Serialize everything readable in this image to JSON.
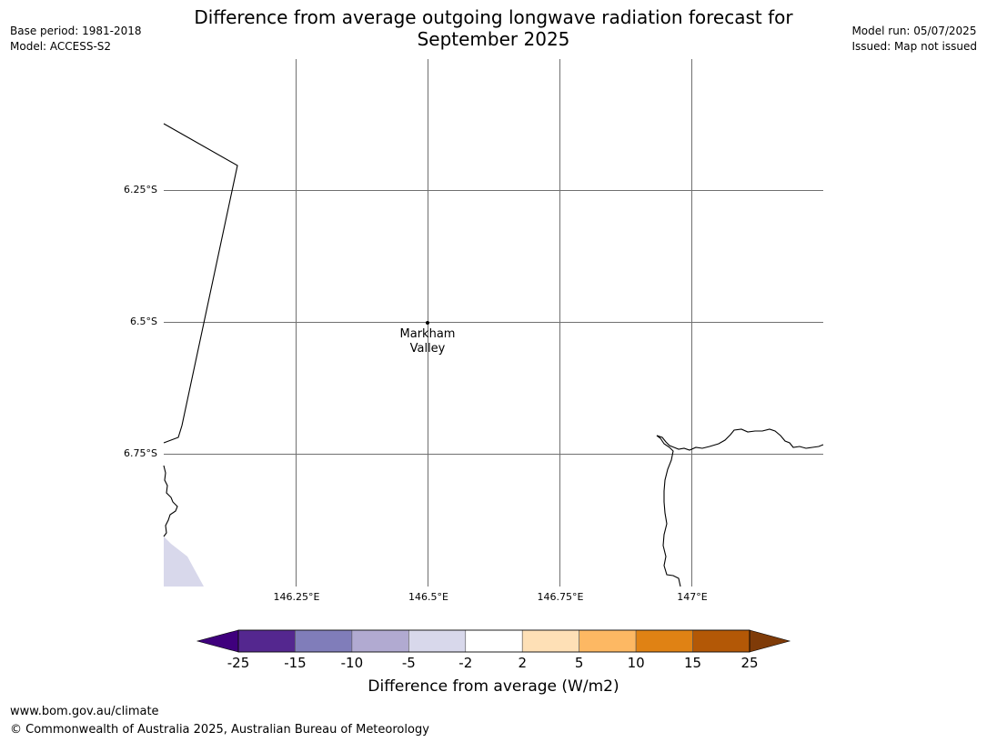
{
  "title": "Difference from average outgoing longwave radiation forecast for September 2025",
  "meta_left": {
    "base_period": "Base period: 1981-2018",
    "model": "Model: ACCESS-S2"
  },
  "meta_right": {
    "model_run": "Model run: 05/07/2025",
    "issued": "Issued: Map not issued"
  },
  "map": {
    "lat_labels": [
      "6.25°S",
      "6.5°S",
      "6.75°S"
    ],
    "lon_labels": [
      "146.25°E",
      "146.5°E",
      "146.75°E",
      "147°E"
    ],
    "place": {
      "name": "Markham Valley"
    }
  },
  "colorbar": {
    "title": "Difference from average (W/m2)",
    "ticks": [
      "-25",
      "-15",
      "-10",
      "-5",
      "-2",
      "2",
      "5",
      "10",
      "15",
      "25"
    ],
    "colors": [
      "#3f007d",
      "#54278f",
      "#807dba",
      "#b1aad1",
      "#d8d8eb",
      "#ffffff",
      "#fee0b6",
      "#fdb863",
      "#e08214",
      "#b35806",
      "#7f3b08"
    ]
  },
  "footer": {
    "url": "www.bom.gov.au/climate",
    "copyright": "© Commonwealth of Australia 2025, Australian Bureau of Meteorology"
  }
}
